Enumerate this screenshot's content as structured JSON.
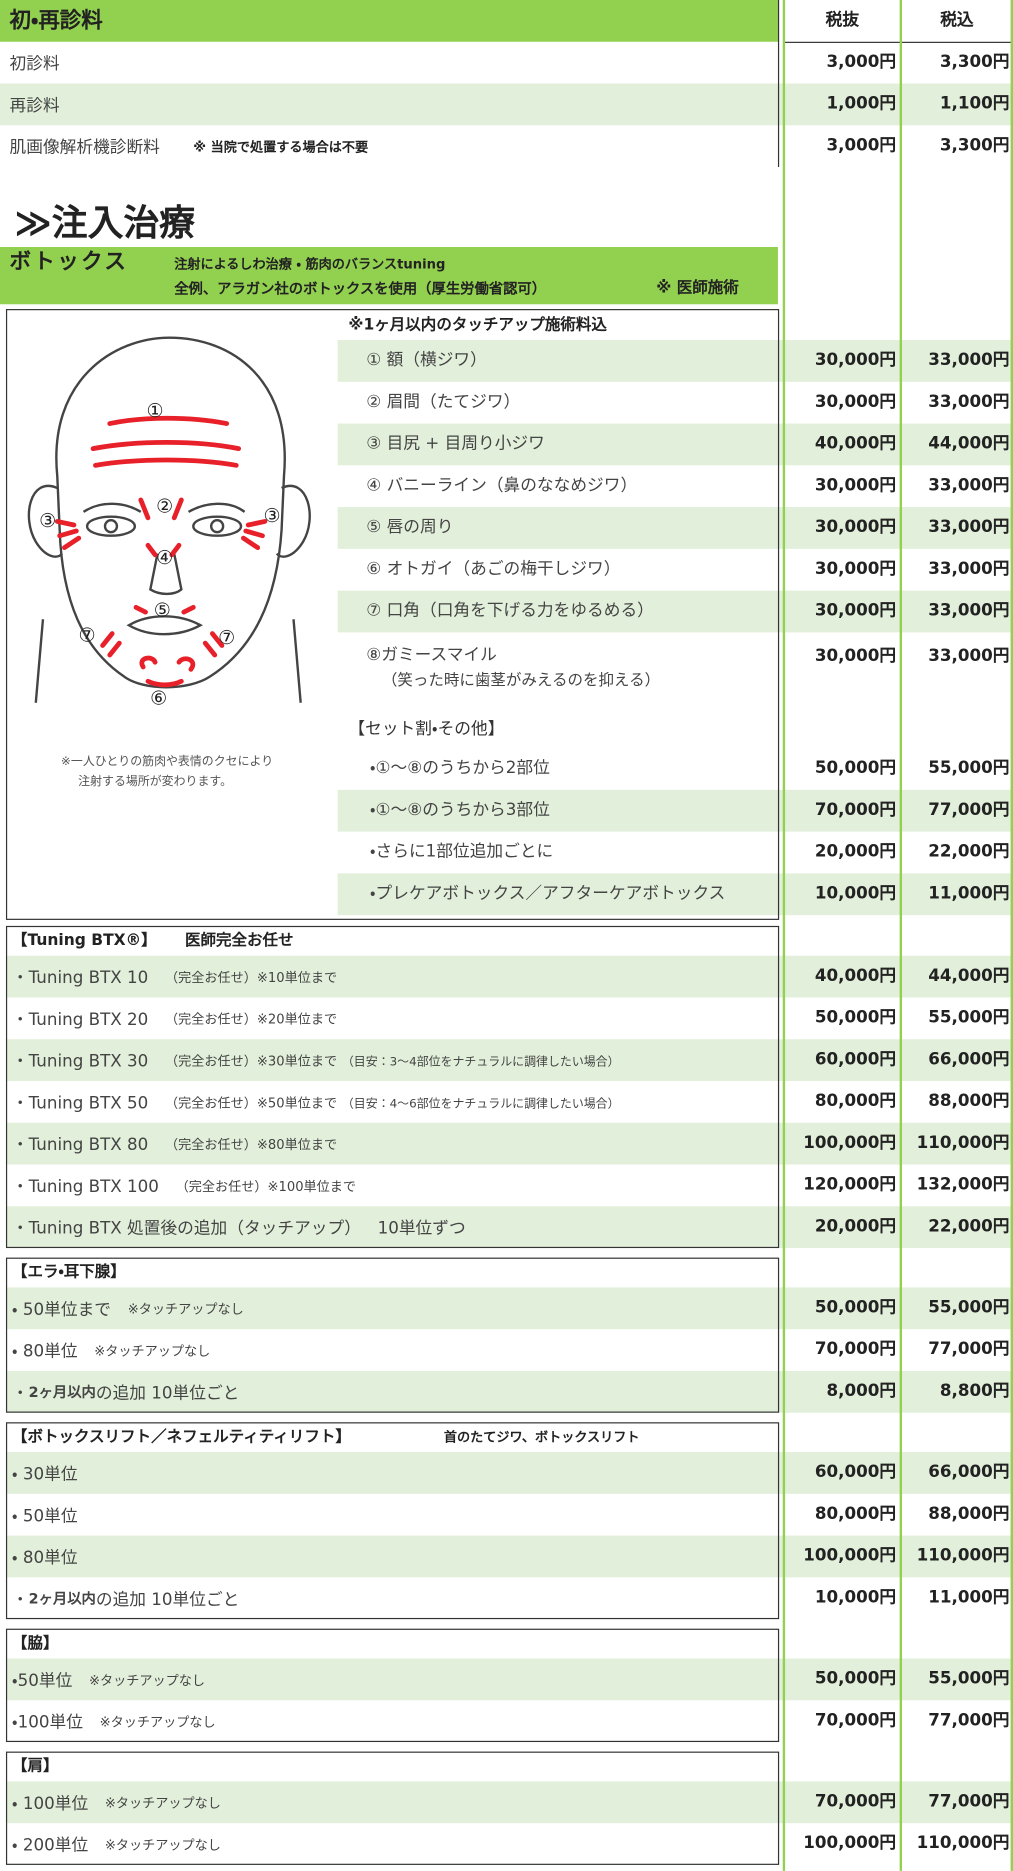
{
  "header": {
    "title": "初・再診料",
    "col_ex": "税抜",
    "col_in": "税込"
  },
  "consult": [
    {
      "label": [
        {
          "text": "初診料"
        }
      ],
      "ex": "3,000円",
      "in": "3,300円"
    },
    {
      "label": [
        {
          "text": "再診料"
        }
      ],
      "ex": "1,000円",
      "in": "1,100円"
    },
    {
      "label": [
        {
          "text": "肌画像解析機診断料"
        },
        {
          "text": "※ 当院で処置する場合は不要",
          "style": "bold-small"
        }
      ],
      "ex": "3,000円",
      "in": "3,300円"
    }
  ],
  "injection": {
    "title": "≫注入治療"
  },
  "botox": {
    "name": "ボトックス",
    "notes": [
      "注射によるしわ治療 ・ 筋肉のバランスtuning",
      "全例、アラガン社のボトックスを使用（厚生労働省認可）"
    ],
    "doctor": "※ 医師施術",
    "touchup": "※1ヶ月以内のタッチアップ施術料込",
    "diagram_labels": [
      "①",
      "②",
      "③",
      "③",
      "④",
      "⑤",
      "⑦",
      "⑦",
      "⑥"
    ],
    "caption": [
      "※一人ひとりの筋肉や表情のクセにより",
      "注射する場所が変わります。"
    ],
    "items": [
      {
        "label": "① 額（横ジワ）",
        "ex": "30,000円",
        "in": "33,000円"
      },
      {
        "label": "② 眉間（たてジワ）",
        "ex": "30,000円",
        "in": "33,000円"
      },
      {
        "label": "③ 目尻 + 目周り小ジワ",
        "ex": "40,000円",
        "in": "44,000円"
      },
      {
        "label": "④ バニーライン（鼻のななめジワ）",
        "ex": "30,000円",
        "in": "33,000円"
      },
      {
        "label": "⑤ 唇の周り",
        "ex": "30,000円",
        "in": "33,000円"
      },
      {
        "label": "⑥ オトガイ（あごの梅干しジワ）",
        "ex": "30,000円",
        "in": "33,000円"
      },
      {
        "label": "⑦ 口角（口角を下げる力をゆるめる）",
        "ex": "30,000円",
        "in": "33,000円"
      },
      {
        "label": "⑧ガミースマイル",
        "sub": "（笑った時に歯茎がみえるのを抑える）",
        "ex": "30,000円",
        "in": "33,000円"
      }
    ],
    "set_title": "【セット割・その他】",
    "set_items": [
      {
        "label": "・①〜⑧のうちから2部位",
        "ex": "50,000円",
        "in": "55,000円"
      },
      {
        "label": "・①〜⑧のうちから3部位",
        "ex": "70,000円",
        "in": "77,000円"
      },
      {
        "label": "・さらに1部位追加ごとに",
        "ex": "20,000円",
        "in": "22,000円"
      },
      {
        "label": "・プレケアボトックス／アフターケアボトックス",
        "ex": "10,000円",
        "in": "11,000円"
      }
    ]
  },
  "groups": [
    {
      "title": "【Tuning BTX®】",
      "note": "医師完全お任せ",
      "rows": [
        {
          "label": [
            {
              "text": "・Tuning BTX 10"
            },
            {
              "text": "（完全お任せ）※10単位まで",
              "style": "small"
            }
          ],
          "ex": "40,000円",
          "in": "44,000円"
        },
        {
          "label": [
            {
              "text": "・Tuning BTX 20"
            },
            {
              "text": "（完全お任せ）※20単位まで",
              "style": "small"
            }
          ],
          "ex": "50,000円",
          "in": "55,000円"
        },
        {
          "label": [
            {
              "text": "・Tuning BTX 30"
            },
            {
              "text": "（完全お任せ）※30単位まで",
              "style": "small"
            },
            {
              "text": "（目安：3〜4部位をナチュラルに調律したい場合）",
              "style": "tiny"
            }
          ],
          "ex": "60,000円",
          "in": "66,000円"
        },
        {
          "label": [
            {
              "text": "・Tuning BTX 50"
            },
            {
              "text": "（完全お任せ）※50単位まで",
              "style": "small"
            },
            {
              "text": "（目安：4〜6部位をナチュラルに調律したい場合）",
              "style": "tiny"
            }
          ],
          "ex": "80,000円",
          "in": "88,000円"
        },
        {
          "label": [
            {
              "text": "・Tuning BTX 80"
            },
            {
              "text": "（完全お任せ）※80単位まで",
              "style": "small"
            }
          ],
          "ex": "100,000円",
          "in": "110,000円"
        },
        {
          "label": [
            {
              "text": "・Tuning BTX 100"
            },
            {
              "text": "（完全お任せ）※100単位まで",
              "style": "small"
            }
          ],
          "ex": "120,000円",
          "in": "132,000円"
        },
        {
          "label": [
            {
              "text": "・Tuning BTX 処置後の追加（タッチアップ）"
            },
            {
              "text": "10単位ずつ"
            }
          ],
          "ex": "20,000円",
          "in": "22,000円"
        }
      ]
    },
    {
      "title": "【エラ・耳下腺】",
      "rows": [
        {
          "label": [
            {
              "text": "・ 50単位まで"
            },
            {
              "text": "※タッチアップなし",
              "style": "small"
            }
          ],
          "ex": "50,000円",
          "in": "55,000円"
        },
        {
          "label": [
            {
              "text": "・ 80単位"
            },
            {
              "text": "※タッチアップなし",
              "style": "small"
            }
          ],
          "ex": "70,000円",
          "in": "77,000円"
        },
        {
          "label": [
            {
              "text": "・ "
            },
            {
              "text": "2ヶ月以内",
              "style": "bold"
            },
            {
              "text": "の追加 10単位ごと",
              "style": "join"
            }
          ],
          "ex": "8,000円",
          "in": "8,800円"
        }
      ]
    },
    {
      "title": "【ボトックスリフト／ネフェルティティリフト】",
      "note": "首のたてジワ、ボトックスリフト",
      "rows": [
        {
          "label": [
            {
              "text": "・ 30単位"
            }
          ],
          "ex": "60,000円",
          "in": "66,000円"
        },
        {
          "label": [
            {
              "text": "・ 50単位"
            }
          ],
          "ex": "80,000円",
          "in": "88,000円"
        },
        {
          "label": [
            {
              "text": "・ 80単位"
            }
          ],
          "ex": "100,000円",
          "in": "110,000円"
        },
        {
          "label": [
            {
              "text": "・ "
            },
            {
              "text": "2ヶ月以内",
              "style": "bold"
            },
            {
              "text": "の追加 10単位ごと",
              "style": "join"
            }
          ],
          "ex": "10,000円",
          "in": "11,000円"
        }
      ]
    },
    {
      "title": "【脇】",
      "rows": [
        {
          "label": [
            {
              "text": "・50単位"
            },
            {
              "text": "※タッチアップなし",
              "style": "small"
            }
          ],
          "ex": "50,000円",
          "in": "55,000円"
        },
        {
          "label": [
            {
              "text": "・100単位"
            },
            {
              "text": "※タッチアップなし",
              "style": "small"
            }
          ],
          "ex": "70,000円",
          "in": "77,000円"
        }
      ]
    },
    {
      "title": "【肩】",
      "rows": [
        {
          "label": [
            {
              "text": "・ 100単位"
            },
            {
              "text": "※タッチアップなし",
              "style": "small"
            }
          ],
          "ex": "70,000円",
          "in": "77,000円"
        },
        {
          "label": [
            {
              "text": "・ 200単位"
            },
            {
              "text": "※タッチアップなし",
              "style": "small"
            }
          ],
          "ex": "100,000円",
          "in": "110,000円"
        }
      ]
    }
  ]
}
